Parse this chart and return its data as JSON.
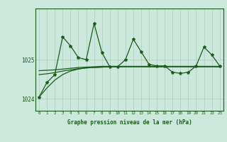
{
  "title": "Graphe pression niveau de la mer (hPa)",
  "background_color": "#cce8dc",
  "line_color": "#1a5c1a",
  "grid_color": "#aaccbb",
  "x_values": [
    0,
    1,
    2,
    3,
    4,
    5,
    6,
    7,
    8,
    9,
    10,
    11,
    12,
    13,
    14,
    15,
    16,
    17,
    18,
    19,
    20,
    21,
    22,
    23
  ],
  "y_main": [
    1024.05,
    1024.42,
    1024.62,
    1025.58,
    1025.35,
    1025.05,
    1025.0,
    1025.92,
    1025.18,
    1024.82,
    1024.82,
    1025.0,
    1025.52,
    1025.2,
    1024.88,
    1024.84,
    1024.84,
    1024.68,
    1024.65,
    1024.68,
    1024.84,
    1025.32,
    1025.12,
    1024.84
  ],
  "y_trend1": [
    1024.72,
    1024.73,
    1024.74,
    1024.76,
    1024.78,
    1024.8,
    1024.81,
    1024.82,
    1024.83,
    1024.83,
    1024.83,
    1024.83,
    1024.83,
    1024.83,
    1024.83,
    1024.83,
    1024.83,
    1024.83,
    1024.83,
    1024.83,
    1024.83,
    1024.83,
    1024.83,
    1024.83
  ],
  "y_trend2": [
    1024.62,
    1024.64,
    1024.67,
    1024.71,
    1024.74,
    1024.77,
    1024.79,
    1024.8,
    1024.81,
    1024.82,
    1024.82,
    1024.82,
    1024.82,
    1024.82,
    1024.82,
    1024.82,
    1024.82,
    1024.82,
    1024.82,
    1024.82,
    1024.82,
    1024.82,
    1024.82,
    1024.82
  ],
  "y_trend3": [
    1024.05,
    1024.28,
    1024.48,
    1024.62,
    1024.71,
    1024.76,
    1024.79,
    1024.8,
    1024.81,
    1024.82,
    1024.82,
    1024.82,
    1024.82,
    1024.82,
    1024.82,
    1024.82,
    1024.82,
    1024.82,
    1024.82,
    1024.82,
    1024.82,
    1024.82,
    1024.82,
    1024.82
  ],
  "ylim": [
    1023.7,
    1026.3
  ],
  "yticks": [
    1024,
    1025
  ],
  "xlim": [
    -0.5,
    23.5
  ],
  "fig_width": 3.2,
  "fig_height": 2.0,
  "dpi": 100
}
